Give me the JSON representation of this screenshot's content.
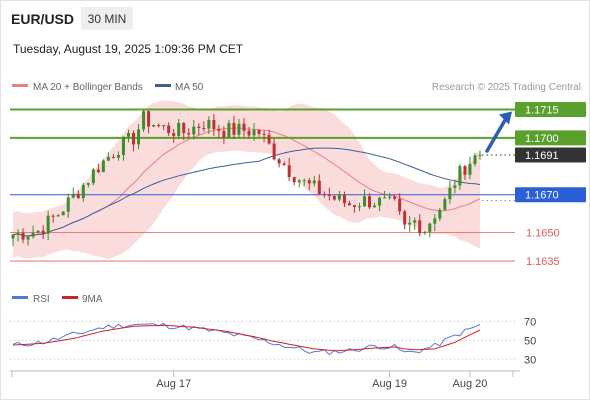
{
  "header": {
    "symbol": "EUR/USD",
    "timeframe": "30 MIN",
    "timestamp": "Tuesday, August 19, 2025 1:09:36 PM CET"
  },
  "legend": {
    "ma20_label": "MA 20 + Bollinger Bands",
    "ma50_label": "MA 50",
    "credit": "Research © 2025 Trading Central"
  },
  "rsi_legend": {
    "rsi_label": "RSI",
    "ma_label": "9MA"
  },
  "colors": {
    "resistance": "#5aa02c",
    "pivot": "#2b5fd9",
    "support": "#e35b5b",
    "last_price": "#333333",
    "ma20": "#e88080",
    "bollinger_fill": "#fbdcdc",
    "ma50": "#3a5f99",
    "candle_up": "#3a8f2a",
    "candle_down": "#c03030",
    "rsi": "#5577dd",
    "rsi_ma": "#d42020",
    "arrow": "#2a5fb0"
  },
  "chart_data": [
    {
      "type": "candlestick",
      "title": "EUR/USD 30 MIN",
      "ylim": [
        1.1625,
        1.172
      ],
      "x_tick_labels": [
        "Aug 17",
        "Aug 19",
        "Aug 20"
      ],
      "x_tick_positions": [
        32,
        75,
        91
      ],
      "n_bars": 94,
      "levels": [
        {
          "label": "1.1715",
          "value": 1.1715,
          "kind": "resistance"
        },
        {
          "label": "1.1700",
          "value": 1.17,
          "kind": "resistance"
        },
        {
          "label": "1.1691",
          "value": 1.1691,
          "kind": "last"
        },
        {
          "label": "1.1670",
          "value": 1.167,
          "kind": "pivot"
        },
        {
          "label": "1.1650",
          "value": 1.165,
          "kind": "support"
        },
        {
          "label": "1.1635",
          "value": 1.1635,
          "kind": "support"
        }
      ],
      "close_path": [
        [
          0,
          1.1649
        ],
        [
          5,
          1.1651
        ],
        [
          9,
          1.166
        ],
        [
          13,
          1.1672
        ],
        [
          17,
          1.1685
        ],
        [
          21,
          1.1695
        ],
        [
          24,
          1.17
        ],
        [
          26,
          1.171
        ],
        [
          30,
          1.1705
        ],
        [
          34,
          1.1703
        ],
        [
          38,
          1.1708
        ],
        [
          42,
          1.1704
        ],
        [
          46,
          1.1704
        ],
        [
          49,
          1.1703
        ],
        [
          52,
          1.1692
        ],
        [
          55,
          1.1683
        ],
        [
          58,
          1.1676
        ],
        [
          61,
          1.1672
        ],
        [
          64,
          1.1668
        ],
        [
          67,
          1.1665
        ],
        [
          70,
          1.1667
        ],
        [
          73,
          1.1666
        ],
        [
          76,
          1.1664
        ],
        [
          78,
          1.1652
        ],
        [
          80,
          1.1656
        ],
        [
          82,
          1.1652
        ],
        [
          84,
          1.166
        ],
        [
          86,
          1.1666
        ],
        [
          88,
          1.1677
        ],
        [
          90,
          1.1685
        ],
        [
          92,
          1.169
        ],
        [
          93,
          1.1691
        ]
      ],
      "projection": {
        "from_bar": 94,
        "from": 1.1691,
        "to": 1.1715
      }
    },
    {
      "type": "line",
      "title": "RSI",
      "ylim": [
        25,
        78
      ],
      "y_ticks": [
        70,
        50,
        30
      ],
      "series": [
        {
          "name": "RSI",
          "points": [
            [
              0,
              45
            ],
            [
              6,
              48
            ],
            [
              12,
              56
            ],
            [
              18,
              64
            ],
            [
              24,
              67
            ],
            [
              30,
              66
            ],
            [
              36,
              63
            ],
            [
              42,
              58
            ],
            [
              48,
              52
            ],
            [
              52,
              47
            ],
            [
              56,
              42
            ],
            [
              60,
              37
            ],
            [
              64,
              38
            ],
            [
              68,
              40
            ],
            [
              72,
              44
            ],
            [
              76,
              43
            ],
            [
              78,
              37
            ],
            [
              80,
              38
            ],
            [
              84,
              44
            ],
            [
              88,
              55
            ],
            [
              91,
              62
            ],
            [
              93,
              66
            ]
          ]
        },
        {
          "name": "9MA",
          "points": [
            [
              0,
              45
            ],
            [
              6,
              47
            ],
            [
              12,
              52
            ],
            [
              18,
              60
            ],
            [
              24,
              65
            ],
            [
              30,
              66
            ],
            [
              36,
              64
            ],
            [
              42,
              60
            ],
            [
              48,
              54
            ],
            [
              52,
              49
            ],
            [
              56,
              45
            ],
            [
              60,
              41
            ],
            [
              64,
              39
            ],
            [
              68,
              40
            ],
            [
              72,
              42
            ],
            [
              76,
              43
            ],
            [
              78,
              41
            ],
            [
              80,
              40
            ],
            [
              84,
              41
            ],
            [
              88,
              48
            ],
            [
              91,
              56
            ],
            [
              93,
              61
            ]
          ]
        }
      ]
    }
  ]
}
